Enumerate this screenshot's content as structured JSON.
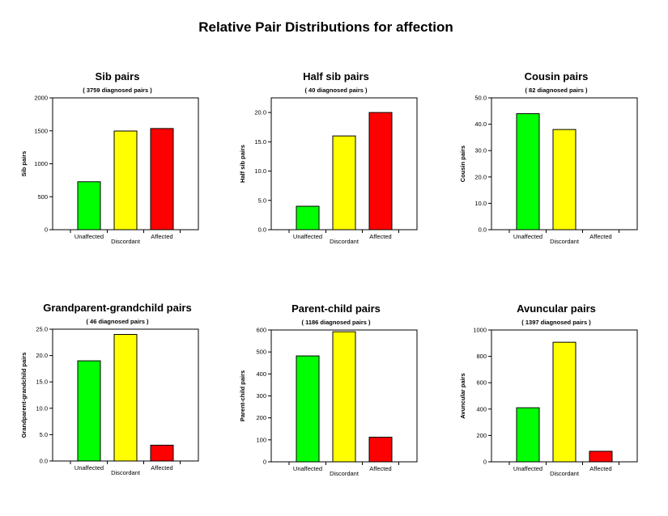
{
  "title": "Relative Pair Distributions for affection",
  "colors": {
    "Unaffected": "#00ff00",
    "Discordant": "#ffff00",
    "Affected": "#ff0000"
  },
  "chart_data": [
    {
      "type": "bar",
      "title": "Sib pairs",
      "subtitle": "( 3759 diagnosed pairs )",
      "ylabel": "Sib pairs",
      "categories": [
        "Unaffected",
        "Discordant",
        "Affected"
      ],
      "values": [
        727,
        1497,
        1535
      ],
      "ylim": [
        0,
        2000
      ],
      "yticks": [
        0,
        500,
        1000,
        1500,
        2000
      ],
      "yticklabels": [
        "0",
        "500",
        "1000",
        "1500",
        "2000"
      ]
    },
    {
      "type": "bar",
      "title": "Half sib pairs",
      "subtitle": "( 40 diagnosed pairs )",
      "ylabel": "Half sib pairs",
      "categories": [
        "Unaffected",
        "Discordant",
        "Affected"
      ],
      "values": [
        4,
        16,
        20
      ],
      "ylim": [
        0,
        22.5
      ],
      "yticks": [
        0,
        5,
        10,
        15,
        20
      ],
      "yticklabels": [
        "0.0",
        "5.0",
        "10.0",
        "15.0",
        "20.0"
      ]
    },
    {
      "type": "bar",
      "title": "Cousin pairs",
      "subtitle": "( 82 diagnosed pairs )",
      "ylabel": "Cousin pairs",
      "categories": [
        "Unaffected",
        "Discordant",
        "Affected"
      ],
      "values": [
        44,
        38,
        0
      ],
      "ylim": [
        0,
        50
      ],
      "yticks": [
        0,
        10,
        20,
        30,
        40,
        50
      ],
      "yticklabels": [
        "0.0",
        "10.0",
        "20.0",
        "30.0",
        "40.0",
        "50.0"
      ]
    },
    {
      "type": "bar",
      "title": "Grandparent-grandchild pairs",
      "subtitle": "( 46 diagnosed pairs )",
      "ylabel": "Grandparent-grandchild pairs",
      "categories": [
        "Unaffected",
        "Discordant",
        "Affected"
      ],
      "values": [
        19,
        24,
        3
      ],
      "ylim": [
        0,
        25
      ],
      "yticks": [
        0,
        5,
        10,
        15,
        20,
        25
      ],
      "yticklabels": [
        "0.0",
        "5.0",
        "10.0",
        "15.0",
        "20.0",
        "25.0"
      ]
    },
    {
      "type": "bar",
      "title": "Parent-child pairs",
      "subtitle": "( 1186 diagnosed pairs )",
      "ylabel": "Parent-child pairs",
      "categories": [
        "Unaffected",
        "Discordant",
        "Affected"
      ],
      "values": [
        482,
        592,
        112
      ],
      "ylim": [
        0,
        600
      ],
      "yticks": [
        0,
        100,
        200,
        300,
        400,
        500,
        600
      ],
      "yticklabels": [
        "0",
        "100",
        "200",
        "300",
        "400",
        "500",
        "600"
      ]
    },
    {
      "type": "bar",
      "title": "Avuncular pairs",
      "subtitle": "( 1397 diagnosed pairs )",
      "ylabel": "Avuncular pairs",
      "categories": [
        "Unaffected",
        "Discordant",
        "Affected"
      ],
      "values": [
        410,
        907,
        80
      ],
      "ylim": [
        0,
        1000
      ],
      "yticks": [
        0,
        200,
        400,
        600,
        800,
        1000
      ],
      "yticklabels": [
        "0",
        "200",
        "400",
        "600",
        "800",
        "1000"
      ]
    }
  ]
}
